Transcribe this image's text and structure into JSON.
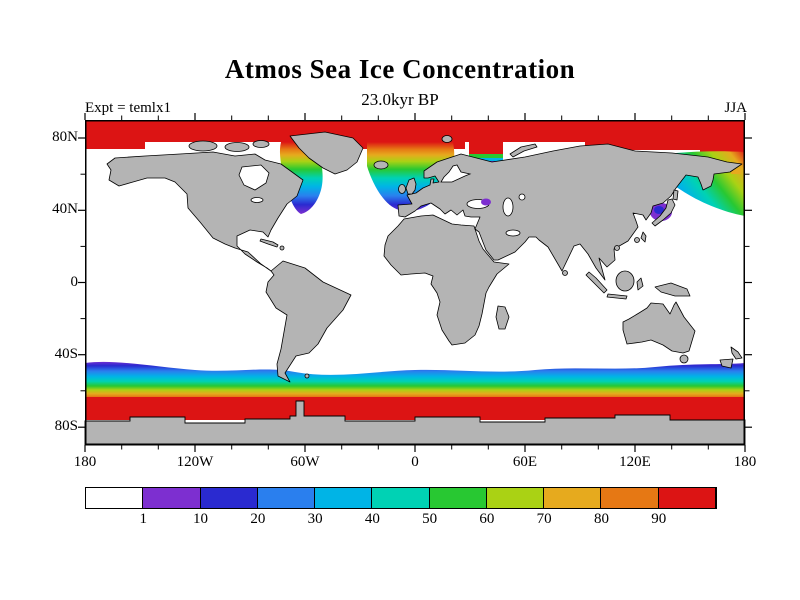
{
  "header": {
    "title": "Atmos Sea Ice Concentration",
    "subtitle": "23.0kyr BP",
    "experiment_label": "Expt = temlx1",
    "season_label": "JJA"
  },
  "axes": {
    "lat_labels": [
      "80N",
      "40N",
      "0",
      "40S",
      "80S"
    ],
    "lon_labels": [
      "180",
      "120W",
      "60W",
      "0",
      "60E",
      "120E",
      "180"
    ]
  },
  "colorbar": {
    "tick_labels": [
      "1",
      "10",
      "20",
      "30",
      "40",
      "50",
      "60",
      "70",
      "80",
      "90"
    ],
    "colors": [
      "#ffffff",
      "#7d2fd0",
      "#2a2ad0",
      "#2a7fee",
      "#00b4e6",
      "#00d2b4",
      "#28c832",
      "#aad214",
      "#e6aa1e",
      "#e67814",
      "#dc1414"
    ]
  },
  "chart_data": {
    "type": "heatmap",
    "title": "Atmos Sea Ice Concentration",
    "subtitle": "23.0kyr BP",
    "experiment": "temlx1",
    "season": "JJA",
    "variable": "sea ice concentration",
    "units": "%",
    "projection": "equirectangular world map, longitude 180W to 180E, latitude 90S to 90N",
    "lat_tick_values": [
      80,
      40,
      0,
      -40,
      -80
    ],
    "lon_tick_values": [
      -180,
      -120,
      -60,
      0,
      60,
      120,
      180
    ],
    "contour_levels": [
      1,
      10,
      20,
      30,
      40,
      50,
      60,
      70,
      80,
      90
    ],
    "level_colors": [
      "#ffffff",
      "#7d2fd0",
      "#2a2ad0",
      "#2a7fee",
      "#00b4e6",
      "#00d2b4",
      "#28c832",
      "#aad214",
      "#e6aa1e",
      "#e67814",
      "#dc1414"
    ],
    "colorbar_orientation": "horizontal",
    "land_color": "#b4b4b4",
    "ocean_color": "#ffffff",
    "features": [
      "Solid red band (>90% concentration) across the Arctic Ocean at the top of the map",
      "Rainbow ice-edge gradient tongues (90% down to 1%) in Baffin Bay / Labrador Sea and in the Greenland-Iceland-Norwegian Seas",
      "Rainbow ice-edge gradient in the NW Pacific around Kamchatka (Sea of Okhotsk / Bering Sea)",
      "Small low-concentration (purple/blue) patch in the Sea of Japan",
      "Circumpolar Antarctic sea-ice band around 50S-65S; concentration increases southward from 1% (purple) through blue, cyan, green, yellow, orange to >90% (red) at the Antarctic coast",
      "Continents masked in gray with black coastlines; open ocean white"
    ]
  }
}
